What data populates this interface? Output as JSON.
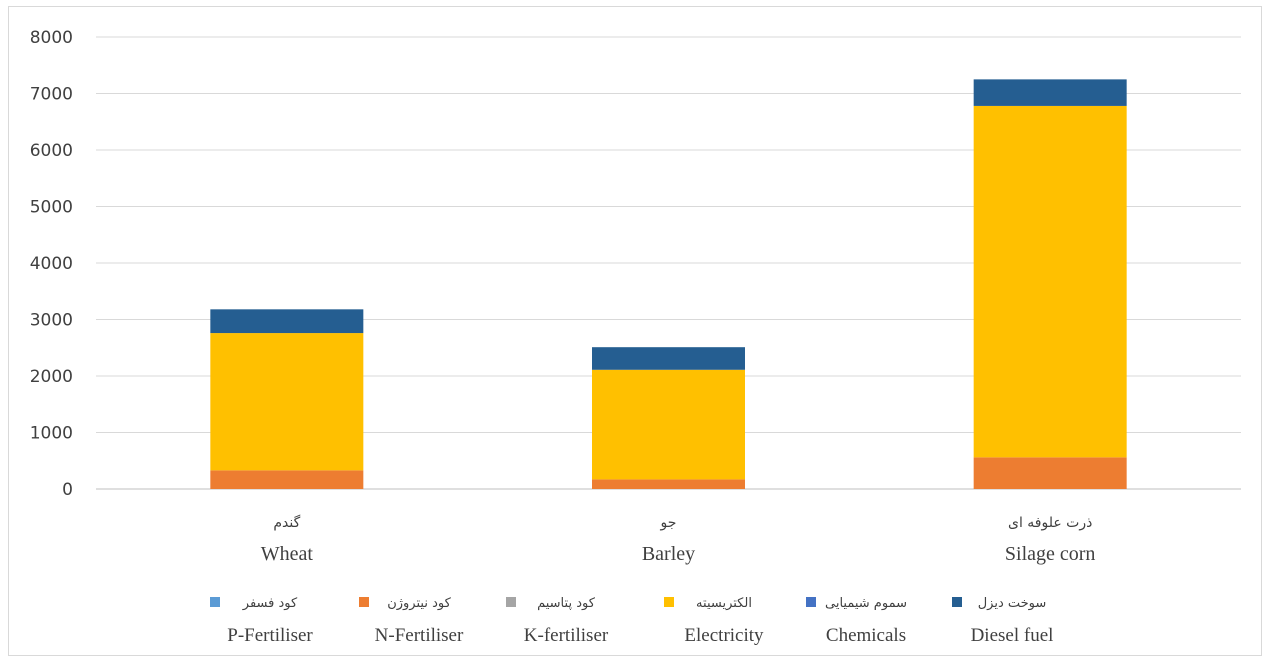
{
  "chart_data": {
    "type": "bar",
    "stacked": true,
    "categories": [
      {
        "fa": "گندم",
        "en": "Wheat"
      },
      {
        "fa": "جو",
        "en": "Barley"
      },
      {
        "fa": "ذرت علوفه ای",
        "en": "Silage corn"
      }
    ],
    "series": [
      {
        "fa": "کود فسفر",
        "en": "P-Fertiliser",
        "color": "#5B9BD5",
        "values": [
          0,
          0,
          0
        ]
      },
      {
        "fa": "کود نیتروژن",
        "en": "N-Fertiliser",
        "color": "#ED7D31",
        "values": [
          330,
          170,
          560
        ]
      },
      {
        "fa": "کود پتاسیم",
        "en": "K-fertiliser",
        "color": "#A5A5A5",
        "values": [
          0,
          0,
          0
        ]
      },
      {
        "fa": "الکتریسیته",
        "en": "Electricity",
        "color": "#FFC000",
        "values": [
          2430,
          1940,
          6220
        ]
      },
      {
        "fa": "سموم شیمیایی",
        "en": "Chemicals",
        "color": "#4472C4",
        "values": [
          0,
          0,
          0
        ]
      },
      {
        "fa": "سوخت دیزل",
        "en": "Diesel fuel",
        "color": "#255E91",
        "values": [
          420,
          400,
          470
        ]
      }
    ],
    "ylim": [
      0,
      8000
    ],
    "yticks": [
      "0",
      "1000",
      "2000",
      "3000",
      "4000",
      "5000",
      "6000",
      "7000",
      "8000"
    ],
    "grid": true,
    "legend_position": "bottom"
  }
}
